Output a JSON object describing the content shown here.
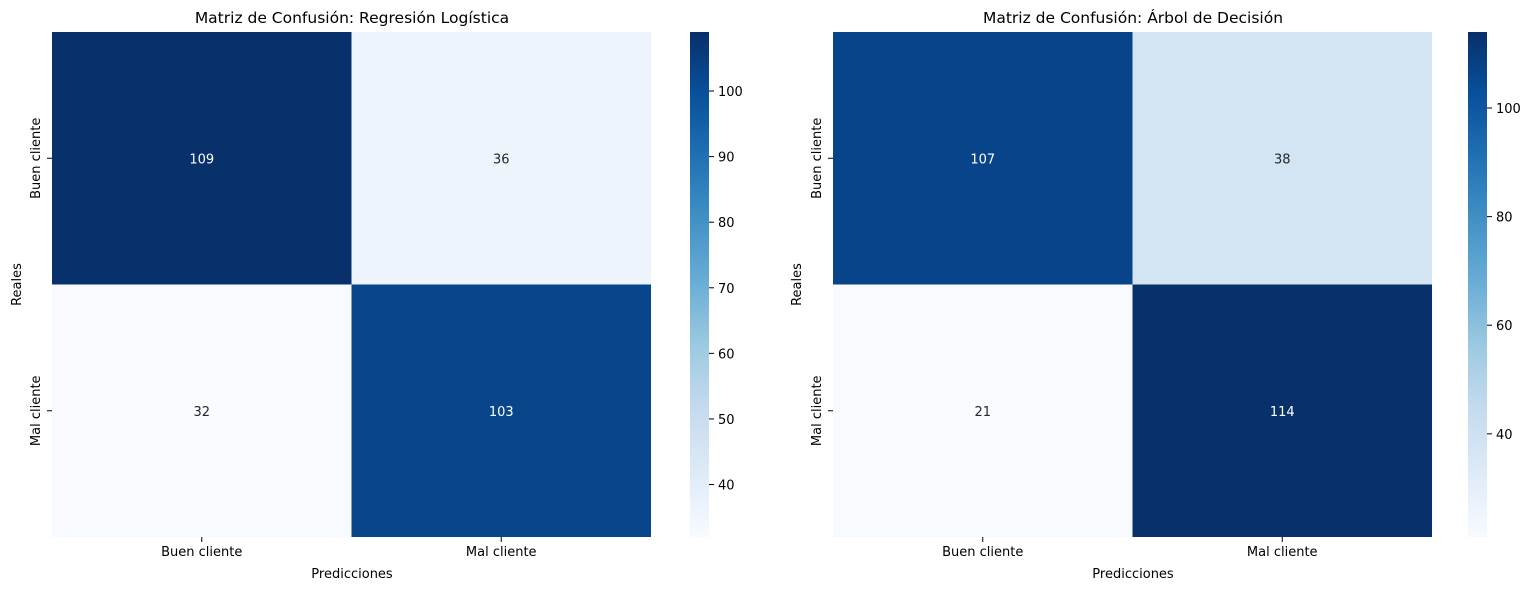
{
  "chart_data": [
    {
      "type": "heatmap",
      "title": "Matriz de Confusión: Regresión Logística",
      "xlabel": "Predicciones",
      "ylabel": "Reales",
      "x_categories": [
        "Buen cliente",
        "Mal cliente"
      ],
      "y_categories": [
        "Buen cliente",
        "Mal cliente"
      ],
      "values": [
        [
          109,
          36
        ],
        [
          32,
          103
        ]
      ],
      "colormap": "Blues",
      "color_range": [
        32,
        109
      ],
      "colorbar_ticks": [
        40,
        50,
        60,
        70,
        80,
        90,
        100
      ]
    },
    {
      "type": "heatmap",
      "title": "Matriz de Confusión: Árbol de Decisión",
      "xlabel": "Predicciones",
      "ylabel": "Reales",
      "x_categories": [
        "Buen cliente",
        "Mal cliente"
      ],
      "y_categories": [
        "Buen cliente",
        "Mal cliente"
      ],
      "values": [
        [
          107,
          38
        ],
        [
          21,
          114
        ]
      ],
      "colormap": "Blues",
      "color_range": [
        21,
        114
      ],
      "colorbar_ticks": [
        40,
        60,
        80,
        100
      ]
    }
  ]
}
